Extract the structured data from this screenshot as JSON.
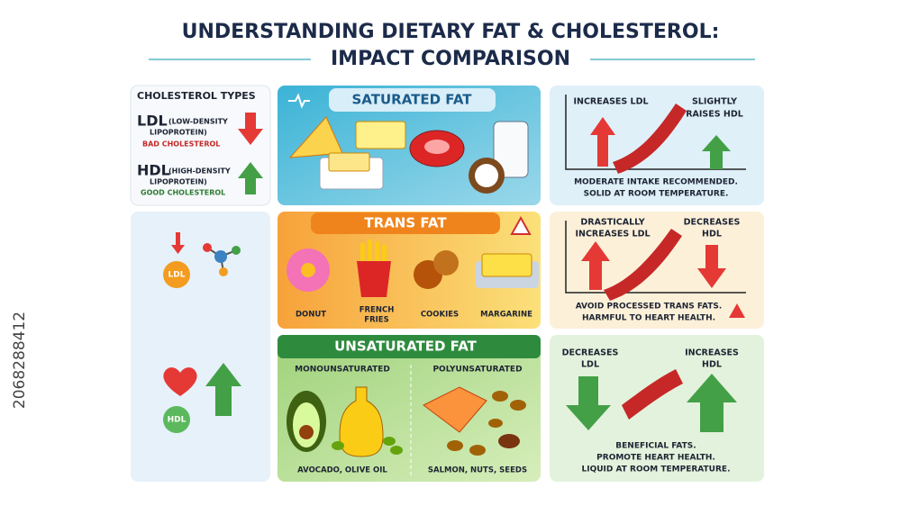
{
  "header": {
    "title_lines": [
      "UNDERSTANDING DIETARY FAT & CHOLESTEROL:",
      "IMPACT COMPARISON"
    ]
  },
  "watermark_id": "2068288412",
  "cholesterol_types": {
    "title": "CHOLESTEROL TYPES",
    "ldl": {
      "name": "LDL",
      "detail_lines": [
        "(LOW-DENSITY",
        "LIPOPROTEIN)"
      ],
      "label": "BAD CHOLESTEROL"
    },
    "hdl": {
      "name": "HDL",
      "detail_lines": [
        "(HIGH-DENSITY",
        "LIPOPROTEIN)"
      ],
      "label": "GOOD CHOLESTEROL"
    },
    "icons": {
      "ldl": "LDL",
      "hdl": "HDL"
    }
  },
  "fats": [
    {
      "name": "SATURATED FAT",
      "ldl_lines": [
        "INCREASES LDL"
      ],
      "hdl_lines": [
        "SLIGHTLY",
        "RAISES HDL"
      ],
      "note_lines": [
        "MODERATE INTAKE RECOMMENDED.",
        "SOLID AT ROOM TEMPERATURE."
      ]
    },
    {
      "name": "TRANS FAT",
      "foods": [
        [
          "DONUT"
        ],
        [
          "FRENCH",
          "FRIES"
        ],
        [
          "COOKIES"
        ],
        [
          "MARGARINE"
        ]
      ],
      "ldl_lines": [
        "DRASTICALLY",
        "INCREASES LDL"
      ],
      "hdl_lines": [
        "DECREASES",
        "HDL"
      ],
      "note_lines": [
        "AVOID PROCESSED TRANS FATS.",
        "HARMFUL TO HEART HEALTH."
      ]
    },
    {
      "name": "UNSATURATED FAT",
      "subtypes": [
        {
          "name": "MONOUNSATURATED",
          "examples": "AVOCADO, OLIVE OIL"
        },
        {
          "name": "POLYUNSATURATED",
          "examples": "SALMON, NUTS, SEEDS"
        }
      ],
      "ldl_lines": [
        "DECREASES",
        "LDL"
      ],
      "hdl_lines": [
        "INCREASES",
        "HDL"
      ],
      "note_lines": [
        "BENEFICIAL FATS.",
        "PROMOTE HEART HEALTH.",
        "LIQUID AT ROOM TEMPERATURE."
      ]
    }
  ]
}
